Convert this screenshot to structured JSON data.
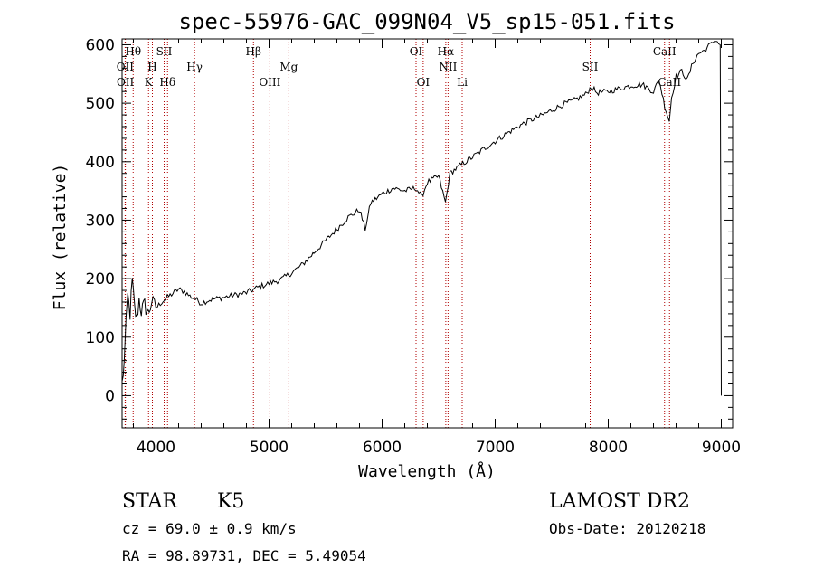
{
  "chart_data": {
    "type": "line",
    "title": "spec-55976-GAC_099N04_V5_sp15-051.fits",
    "xlabel": "Wavelength (Å)",
    "ylabel": "Flux (relative)",
    "xlim": [
      3700,
      9100
    ],
    "ylim": [
      -55,
      610
    ],
    "xticks": [
      4000,
      5000,
      6000,
      7000,
      8000,
      9000
    ],
    "yticks": [
      0,
      100,
      200,
      300,
      400,
      500,
      600
    ],
    "grid": false,
    "series": [
      {
        "color": "#000000",
        "points": [
          [
            3700,
            20
          ],
          [
            3720,
            60
          ],
          [
            3735,
            120
          ],
          [
            3750,
            170
          ],
          [
            3770,
            140
          ],
          [
            3790,
            195
          ],
          [
            3810,
            150
          ],
          [
            3830,
            130
          ],
          [
            3850,
            165
          ],
          [
            3870,
            145
          ],
          [
            3900,
            155
          ],
          [
            3930,
            140
          ],
          [
            3960,
            160
          ],
          [
            4000,
            150
          ],
          [
            4050,
            160
          ],
          [
            4100,
            168
          ],
          [
            4150,
            175
          ],
          [
            4200,
            182
          ],
          [
            4250,
            178
          ],
          [
            4300,
            170
          ],
          [
            4350,
            165
          ],
          [
            4400,
            158
          ],
          [
            4450,
            162
          ],
          [
            4500,
            165
          ],
          [
            4600,
            168
          ],
          [
            4700,
            172
          ],
          [
            4800,
            176
          ],
          [
            4900,
            185
          ],
          [
            5000,
            192
          ],
          [
            5100,
            198
          ],
          [
            5200,
            210
          ],
          [
            5300,
            225
          ],
          [
            5400,
            245
          ],
          [
            5500,
            265
          ],
          [
            5600,
            285
          ],
          [
            5700,
            305
          ],
          [
            5800,
            318
          ],
          [
            5850,
            285
          ],
          [
            5900,
            330
          ],
          [
            6000,
            345
          ],
          [
            6100,
            355
          ],
          [
            6200,
            350
          ],
          [
            6300,
            355
          ],
          [
            6350,
            340
          ],
          [
            6400,
            365
          ],
          [
            6500,
            375
          ],
          [
            6560,
            330
          ],
          [
            6600,
            380
          ],
          [
            6700,
            395
          ],
          [
            6800,
            408
          ],
          [
            6900,
            422
          ],
          [
            7000,
            435
          ],
          [
            7100,
            448
          ],
          [
            7200,
            460
          ],
          [
            7300,
            470
          ],
          [
            7400,
            478
          ],
          [
            7500,
            488
          ],
          [
            7600,
            498
          ],
          [
            7700,
            505
          ],
          [
            7800,
            515
          ],
          [
            7850,
            528
          ],
          [
            7900,
            518
          ],
          [
            8000,
            520
          ],
          [
            8100,
            525
          ],
          [
            8200,
            530
          ],
          [
            8300,
            532
          ],
          [
            8400,
            520
          ],
          [
            8450,
            540
          ],
          [
            8500,
            495
          ],
          [
            8540,
            470
          ],
          [
            8560,
            510
          ],
          [
            8600,
            545
          ],
          [
            8650,
            555
          ],
          [
            8700,
            540
          ],
          [
            8750,
            570
          ],
          [
            8800,
            585
          ],
          [
            8850,
            590
          ],
          [
            8900,
            600
          ],
          [
            8950,
            608
          ],
          [
            8990,
            600
          ],
          [
            9000,
            0
          ]
        ]
      }
    ],
    "line_markers": [
      {
        "label": "Hθ",
        "x": 3798,
        "row": 0
      },
      {
        "label": "OII",
        "x": 3727,
        "row": 1
      },
      {
        "label": "OII",
        "x": 3729,
        "row": 2
      },
      {
        "label": "H",
        "x": 3968,
        "row": 1
      },
      {
        "label": "K",
        "x": 3934,
        "row": 2
      },
      {
        "label": "SII",
        "x": 4072,
        "row": 0
      },
      {
        "label": "Hδ",
        "x": 4102,
        "row": 2
      },
      {
        "label": "Hγ",
        "x": 4341,
        "row": 1
      },
      {
        "label": "Hβ",
        "x": 4862,
        "row": 0
      },
      {
        "label": "OIII",
        "x": 5007,
        "row": 2
      },
      {
        "label": "Mg",
        "x": 5175,
        "row": 1
      },
      {
        "label": "OI",
        "x": 6300,
        "row": 0
      },
      {
        "label": "OI",
        "x": 6363,
        "row": 2
      },
      {
        "label": "Hα",
        "x": 6563,
        "row": 0
      },
      {
        "label": "NII",
        "x": 6583,
        "row": 1
      },
      {
        "label": "Li",
        "x": 6708,
        "row": 2
      },
      {
        "label": "SII",
        "x": 7840,
        "row": 1
      },
      {
        "label": "CaII",
        "x": 8498,
        "row": 0
      },
      {
        "label": "CaII",
        "x": 8542,
        "row": 2
      }
    ]
  },
  "info": {
    "object_class": "STAR",
    "subclass": "K5",
    "survey": "LAMOST DR2",
    "cz": "cz = 69.0 ± 0.9 km/s",
    "obs_date": "Obs-Date: 20120218",
    "coords": "RA =  98.89731, DEC =   5.49054"
  }
}
